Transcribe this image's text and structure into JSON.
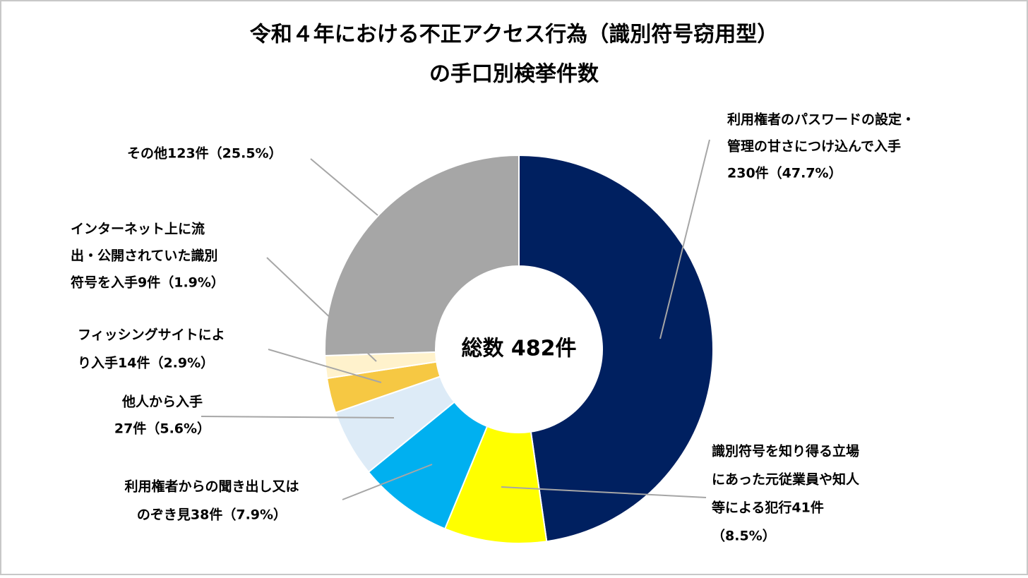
{
  "chart_data": {
    "type": "donut",
    "title": [
      "令和４年における不正アクセス行為（識別符号窃用型）",
      "の手口別検挙件数"
    ],
    "center_label": "総数 482件",
    "labels": [
      [
        "利用権者のパスワードの設定・",
        "管理の甘さにつけ込んで入手",
        "230件（47.7%）"
      ],
      [
        "識別符号を知り得る立場",
        "にあった元従業員や知人",
        "等による犯行41件",
        "（8.5%）"
      ],
      [
        "利用権者からの聞き出し又は",
        "のぞき見38件（7.9%）"
      ],
      [
        "他人から入手",
        "27件（5.6%）"
      ],
      [
        "フィッシングサイトによ",
        "り入手14件（2.9%）"
      ],
      [
        "インターネット上に流",
        "出・公開されていた識別",
        "符号を入手9件（1.9%）"
      ],
      [
        "その他123件（25.5%）"
      ]
    ],
    "values": [
      230,
      41,
      38,
      27,
      14,
      9,
      123
    ],
    "colors": [
      "#002060",
      "#ffff00",
      "#00b0f0",
      "#ddebf7",
      "#f6c843",
      "#fff2cc",
      "#a6a6a6"
    ]
  }
}
